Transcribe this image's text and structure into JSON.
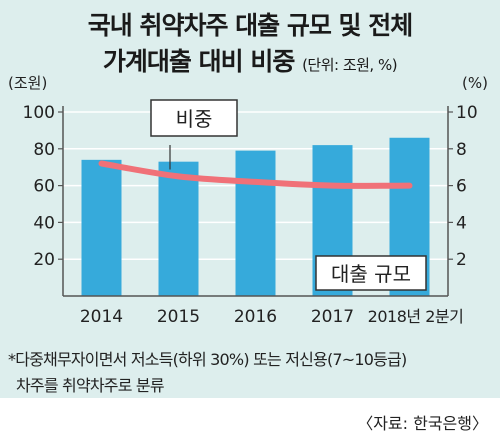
{
  "title_line1": "국내 취약차주 대출 규모 및 전체",
  "title_line2": "가계대출 대비 비중",
  "unit_note": "(단위: 조원, %)",
  "footnote_line1": "*다중채무자이면서 저소득(하위 30%) 또는 저신용(7~10등급)",
  "footnote_line2": "차주를 취약차주로 분류",
  "source": "〈자료: 한국은행〉",
  "colors": {
    "panel": "#ddeeed",
    "bar": "#36aadb",
    "line": "#f07178",
    "callout_border": "#333333"
  },
  "chart_data": {
    "type": "bar",
    "categories": [
      "2014",
      "2015",
      "2016",
      "2017",
      "2018년 2분기"
    ],
    "ylabel": "(조원)",
    "y2label": "(%)",
    "ylim": [
      0,
      100
    ],
    "y2lim": [
      0,
      10
    ],
    "yticks": [
      "20",
      "40",
      "60",
      "80",
      "100"
    ],
    "y2ticks": [
      "2",
      "4",
      "6",
      "8",
      "10"
    ],
    "series": [
      {
        "name": "대출 규모",
        "type": "bar",
        "axis": "left",
        "values": [
          74,
          73,
          79,
          82,
          86
        ]
      },
      {
        "name": "비중",
        "type": "line",
        "axis": "right",
        "values": [
          7.2,
          6.5,
          6.2,
          6.0,
          6.0
        ]
      }
    ]
  }
}
